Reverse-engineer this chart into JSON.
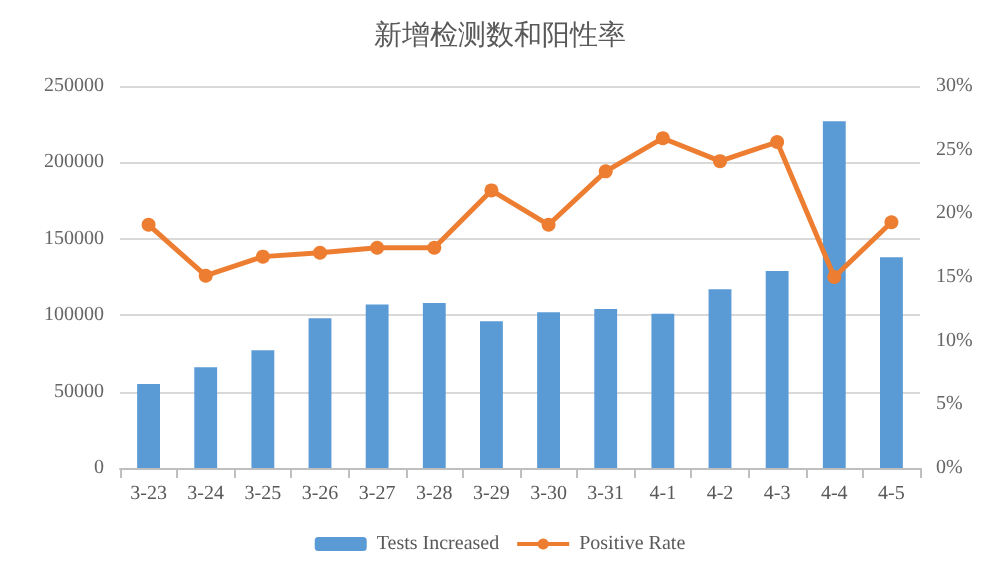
{
  "chart_data": {
    "type": "bar",
    "title": "新增检测数和阳性率",
    "categories": [
      "3-23",
      "3-24",
      "3-25",
      "3-26",
      "3-27",
      "3-28",
      "3-29",
      "3-30",
      "3-31",
      "4-1",
      "4-2",
      "4-3",
      "4-4",
      "4-5"
    ],
    "series": [
      {
        "name": "Tests Increased",
        "color": "#5b9bd5",
        "values": [
          55000,
          66000,
          77000,
          98000,
          107000,
          108000,
          96000,
          102000,
          104000,
          101000,
          117000,
          129000,
          227000,
          138000
        ]
      },
      {
        "name": "Positive Rate",
        "type": "line",
        "axis": "y2",
        "color": "#ed7d31",
        "values": [
          19.1,
          15.1,
          16.6,
          16.9,
          17.3,
          17.3,
          21.8,
          19.1,
          23.3,
          25.9,
          24.1,
          25.6,
          15.0,
          19.3
        ]
      }
    ],
    "ylim": [
      0,
      250000
    ],
    "yticks": [
      0,
      50000,
      100000,
      150000,
      200000,
      250000
    ],
    "y2lim": [
      0,
      30
    ],
    "y2ticks": [
      {
        "value": 0,
        "label": "0%"
      },
      {
        "value": 5,
        "label": "5%"
      },
      {
        "value": 10,
        "label": "10%"
      },
      {
        "value": 15,
        "label": "15%"
      },
      {
        "value": 20,
        "label": "20%"
      },
      {
        "value": 25,
        "label": "25%"
      },
      {
        "value": 30,
        "label": "30%"
      }
    ],
    "grid": "y",
    "legend": "bottom",
    "marker": "circle"
  }
}
